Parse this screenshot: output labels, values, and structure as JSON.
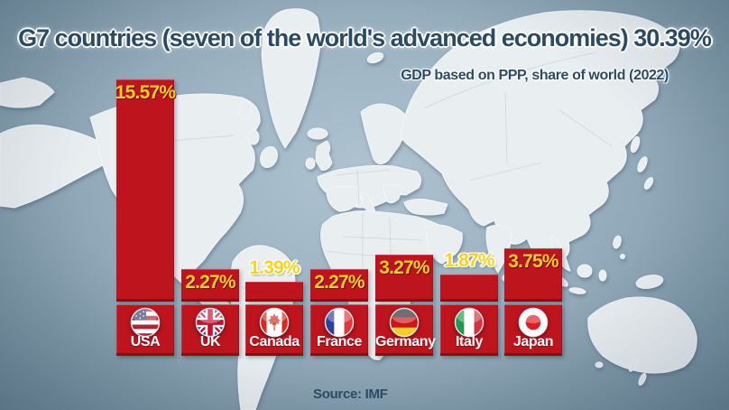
{
  "page": {
    "title": "G7 countries (seven of the world's advanced economies) 30.39%",
    "subtitle": "GDP based on PPP, share of world (2022)",
    "source": "Source: IMF"
  },
  "colors": {
    "bar_red": "#bd141e",
    "bar_red_dark": "#8a0d13",
    "value_yellow": "#fdd21c",
    "title_navy": "#2b4a63",
    "country_label_white": "#ffffff",
    "ocean_blue_grey": "#9fb5c4",
    "land_grey_white": "#e9eef1"
  },
  "chart_data": {
    "type": "bar",
    "title": "G7 countries (seven of the world's advanced economies) 30.39%",
    "subtitle": "GDP based on PPP, share of world (2022)",
    "source": "Source: IMF",
    "unit": "% of world GDP (PPP), 2022",
    "total_label": "30.39%",
    "total_value": 30.39,
    "categories": [
      "USA",
      "UK",
      "Canada",
      "France",
      "Germany",
      "Italy",
      "Japan"
    ],
    "values": [
      15.57,
      2.27,
      1.39,
      2.27,
      3.27,
      1.87,
      3.75
    ],
    "value_labels": [
      "15.57%",
      "2.27%",
      "1.39%",
      "2.27%",
      "3.27%",
      "1.87%",
      "3.75%"
    ],
    "flags": [
      "usa",
      "uk",
      "canada",
      "france",
      "germany",
      "italy",
      "japan"
    ],
    "ylim": [
      0,
      16
    ],
    "grid": false,
    "legend": "none",
    "background": "world-map"
  }
}
